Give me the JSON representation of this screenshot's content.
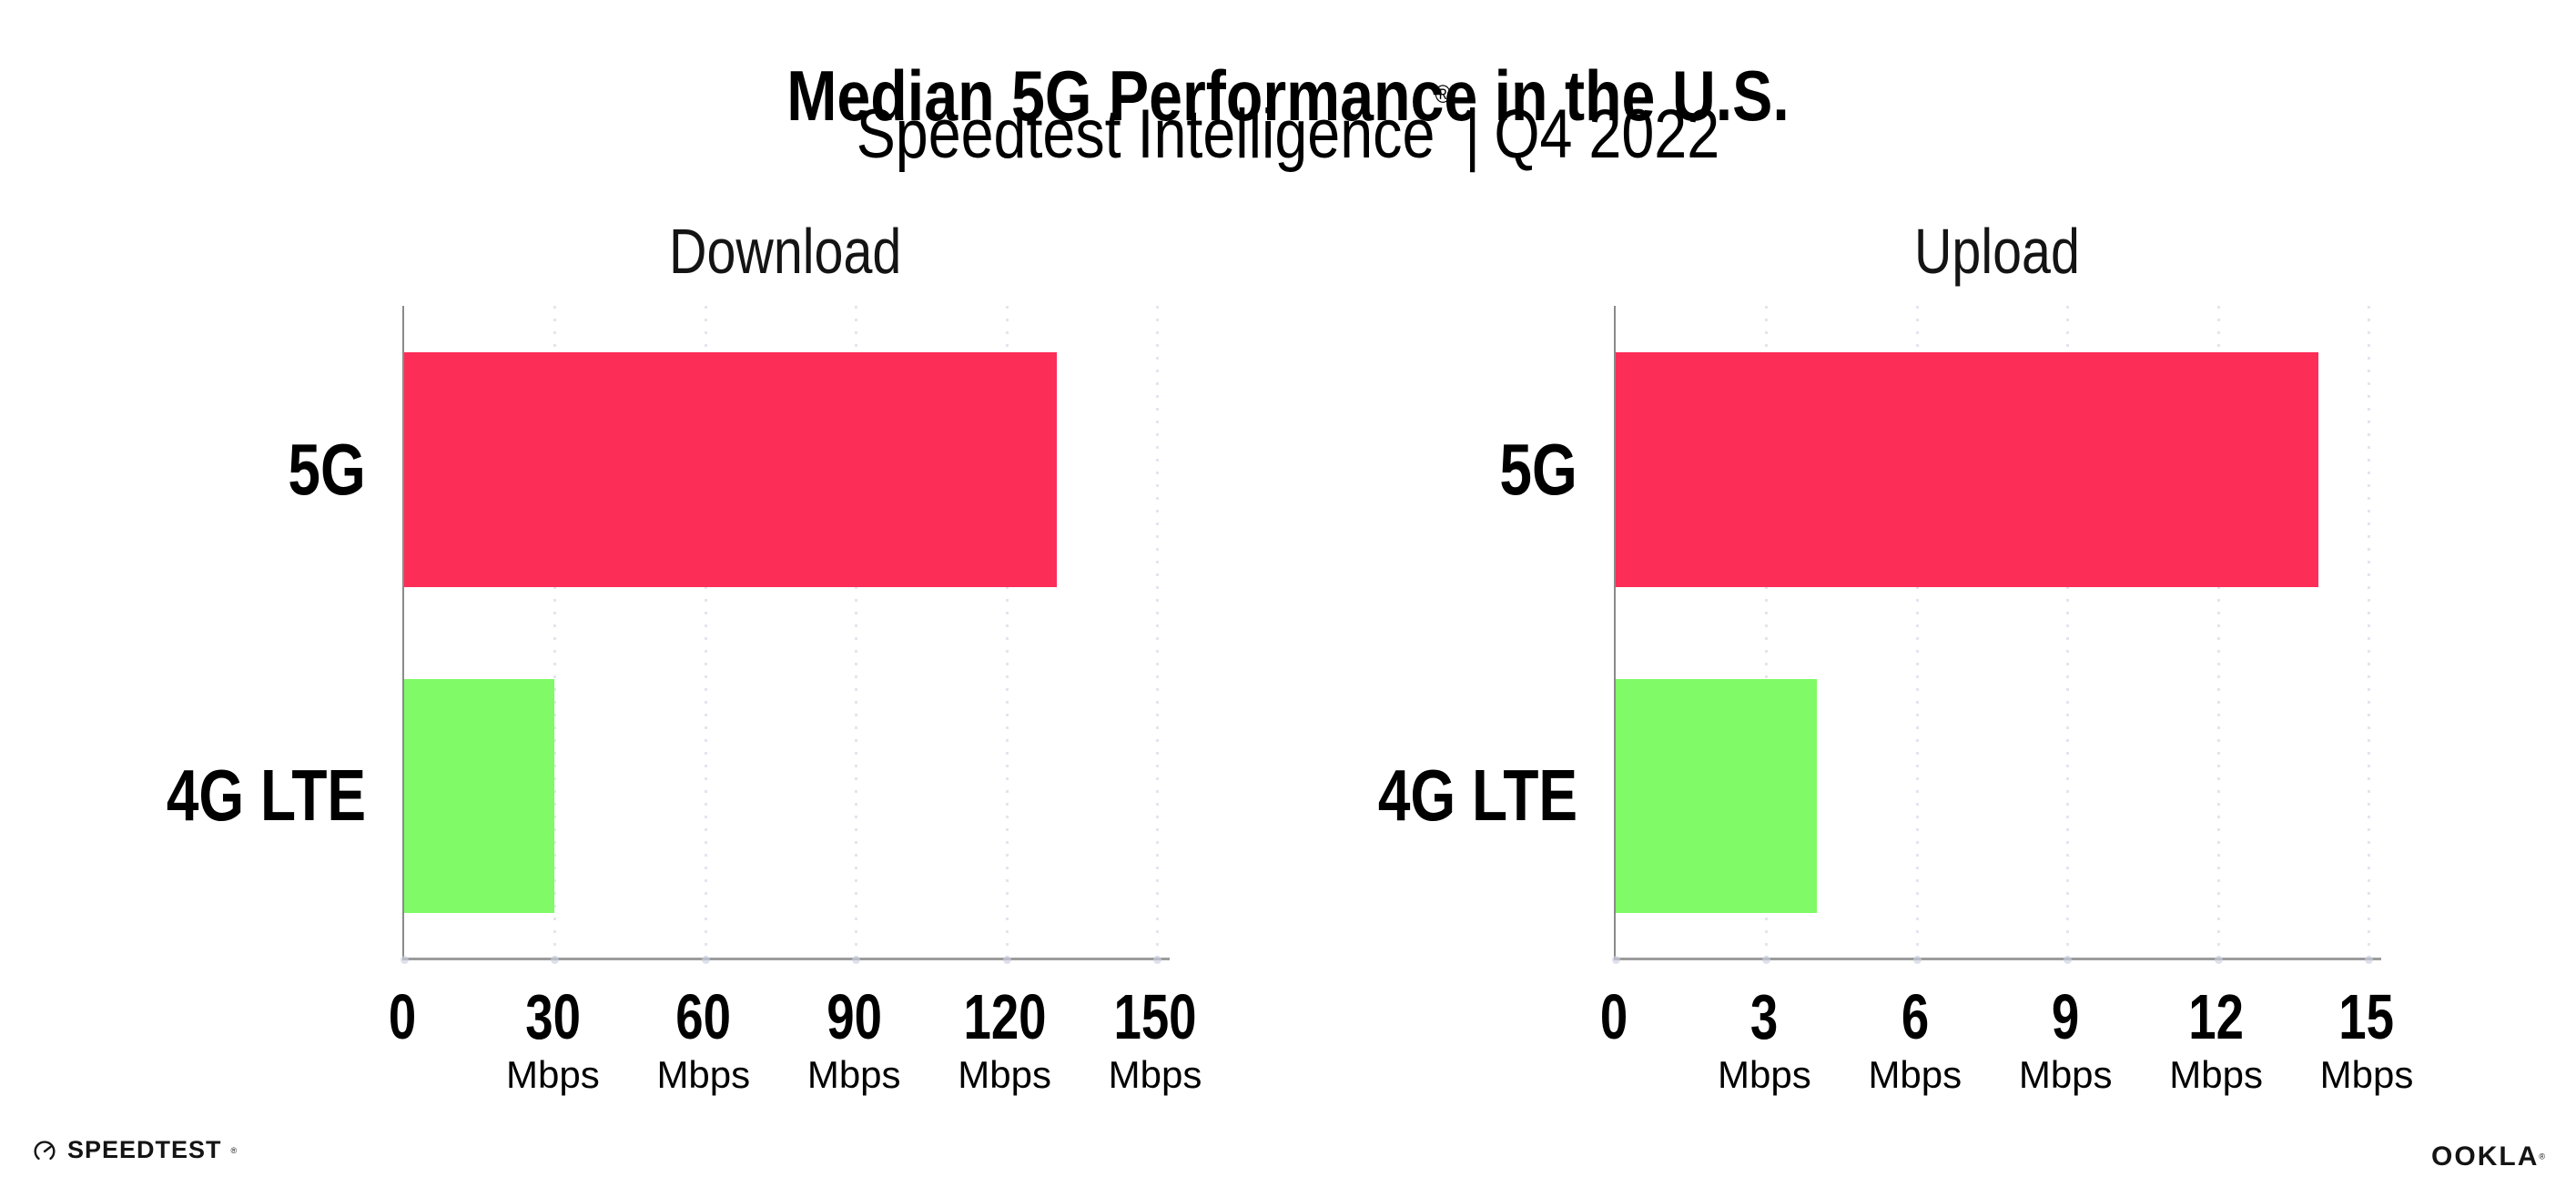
{
  "title": "Median 5G Performance in the U.S.",
  "subtitle": {
    "brand": "Speedtest Intelligence",
    "registered_mark": "®",
    "separator": "|",
    "period": "Q4 2022"
  },
  "colors": {
    "bar_5g": "#fc2d57",
    "bar_4g": "#80fa67",
    "axis": "#9c9c9c",
    "spine": "#8a8a8a",
    "gridline": "#e3e5ef"
  },
  "chart_data": [
    {
      "type": "bar",
      "orientation": "horizontal",
      "title": "Download",
      "categories": [
        "5G",
        "4G LTE"
      ],
      "values": [
        130,
        30
      ],
      "unit": "Mbps",
      "ticks": [
        0,
        30,
        60,
        90,
        120,
        150
      ],
      "xlim": [
        0,
        150
      ],
      "bar_colors": [
        "#fc2d57",
        "#80fa67"
      ],
      "grid": "dotted-vertical",
      "legend": "none"
    },
    {
      "type": "bar",
      "orientation": "horizontal",
      "title": "Upload",
      "categories": [
        "5G",
        "4G LTE"
      ],
      "values": [
        14,
        4
      ],
      "unit": "Mbps",
      "ticks": [
        0,
        3,
        6,
        9,
        12,
        15
      ],
      "xlim": [
        0,
        15
      ],
      "bar_colors": [
        "#fc2d57",
        "#80fa67"
      ],
      "grid": "dotted-vertical",
      "legend": "none"
    }
  ],
  "footer": {
    "speedtest_label": "SPEEDTEST",
    "speedtest_reg": "®",
    "speedtest_icon": "speedtest-gauge-icon",
    "ookla_label": "OOKLA",
    "ookla_reg": "®"
  }
}
